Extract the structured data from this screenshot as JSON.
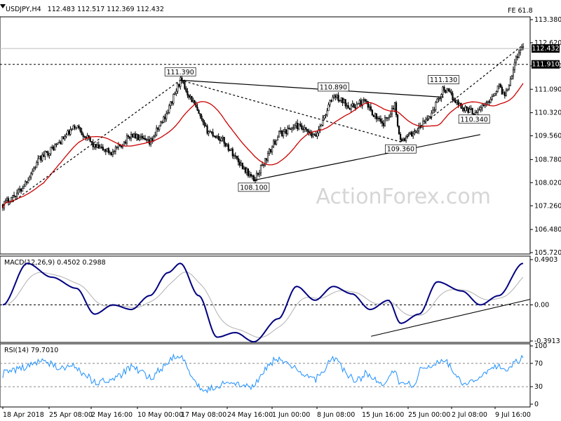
{
  "header": {
    "symbol": "USDJPY,H4",
    "ohlc": "112.483 112.517 112.369 112.432",
    "fe_label": "FE 61.8"
  },
  "watermark": "ActionForex.com",
  "chart_data": [
    {
      "type": "candlestick",
      "name": "price",
      "y_ticks": [
        113.38,
        112.62,
        111.86,
        111.09,
        110.32,
        109.56,
        108.78,
        108.02,
        107.26,
        106.48,
        105.72
      ],
      "ylim": [
        105.72,
        113.38
      ],
      "ma_fast_color": "#cc0000",
      "current_price": 112.432,
      "level_line": 111.91,
      "annotations": [
        {
          "label": "111.390",
          "value": 111.39,
          "x": "17 May 2018"
        },
        {
          "label": "110.890",
          "value": 110.89,
          "x": "11 Jun 2018"
        },
        {
          "label": "111.130",
          "value": 111.13,
          "x": "29 Jun 2018"
        },
        {
          "label": "110.340",
          "value": 110.34,
          "x": "4 Jul 2018"
        },
        {
          "label": "109.360",
          "value": 109.36,
          "x": "22 Jun 2018"
        },
        {
          "label": "108.100",
          "value": 108.1,
          "x": "29 May 2018"
        }
      ],
      "path_points": [
        [
          "18 Apr 2018 00:00",
          107.3
        ],
        [
          "21 Apr 2018 00:00",
          107.8
        ],
        [
          "24 Apr 2018 00:00",
          108.8
        ],
        [
          "27 Apr 2018 00:00",
          109.3
        ],
        [
          "30 Apr 2018 00:00",
          109.9
        ],
        [
          "3 May 2018 00:00",
          109.2
        ],
        [
          "6 May 2018 00:00",
          109.0
        ],
        [
          "9 May 2018 00:00",
          109.6
        ],
        [
          "12 May 2018 00:00",
          109.3
        ],
        [
          "15 May 2018 00:00",
          110.4
        ],
        [
          "17 May 2018 00:00",
          111.39
        ],
        [
          "19 May 2018 00:00",
          110.7
        ],
        [
          "21 May 2018 00:00",
          109.8
        ],
        [
          "24 May 2018 00:00",
          109.4
        ],
        [
          "27 May 2018 00:00",
          108.6
        ],
        [
          "29 May 2018 00:00",
          108.1
        ],
        [
          "31 May 2018 00:00",
          108.8
        ],
        [
          "2 Jun 2018 00:00",
          109.6
        ],
        [
          "5 Jun 2018 00:00",
          109.9
        ],
        [
          "8 Jun 2018 00:00",
          109.5
        ],
        [
          "11 Jun 2018 00:00",
          110.89
        ],
        [
          "14 Jun 2018 00:00",
          110.5
        ],
        [
          "16 Jun 2018 00:00",
          110.7
        ],
        [
          "19 Jun 2018 00:00",
          109.9
        ],
        [
          "21 Jun 2018 00:00",
          110.6
        ],
        [
          "22 Jun 2018 00:00",
          109.36
        ],
        [
          "25 Jun 2018 00:00",
          109.8
        ],
        [
          "27 Jun 2018 00:00",
          110.3
        ],
        [
          "29 Jun 2018 00:00",
          111.13
        ],
        [
          "2 Jul 2018 00:00",
          110.5
        ],
        [
          "4 Jul 2018 00:00",
          110.34
        ],
        [
          "6 Jul 2018 00:00",
          110.6
        ],
        [
          "8 Jul 2018 00:00",
          111.2
        ],
        [
          "9 Jul 2018 00:00",
          110.9
        ],
        [
          "10 Jul 2018 00:00",
          111.5
        ],
        [
          "11 Jul 2018 00:00",
          112.2
        ],
        [
          "12 Jul 2018 00:00",
          112.55
        ]
      ]
    },
    {
      "type": "line",
      "name": "MACD",
      "label": "MACD(12,26,9) 0.4502 0.2988",
      "values": {
        "macd": 0.4502,
        "signal": 0.2988
      },
      "y_ticks": [
        "0.4903",
        "0.00",
        "-0.3913"
      ],
      "ylim": [
        -0.3913,
        0.4903
      ],
      "series_colors": {
        "macd": "#000080",
        "signal": "#b0b0b0"
      },
      "path_points": [
        [
          "18 Apr 2018",
          0.0
        ],
        [
          "22 Apr 2018",
          0.45
        ],
        [
          "26 Apr 2018",
          0.3
        ],
        [
          "30 Apr 2018",
          0.18
        ],
        [
          "3 May 2018",
          -0.1
        ],
        [
          "6 May 2018",
          0.0
        ],
        [
          "9 May 2018",
          -0.05
        ],
        [
          "12 May 2018",
          0.1
        ],
        [
          "15 May 2018",
          0.35
        ],
        [
          "17 May 2018",
          0.45
        ],
        [
          "20 May 2018",
          0.1
        ],
        [
          "23 May 2018",
          -0.35
        ],
        [
          "26 May 2018",
          -0.3
        ],
        [
          "29 May 2018",
          -0.4
        ],
        [
          "2 Jun 2018",
          -0.15
        ],
        [
          "5 Jun 2018",
          0.2
        ],
        [
          "8 Jun 2018",
          0.05
        ],
        [
          "11 Jun 2018",
          0.2
        ],
        [
          "14 Jun 2018",
          0.12
        ],
        [
          "17 Jun 2018",
          -0.05
        ],
        [
          "20 Jun 2018",
          0.05
        ],
        [
          "22 Jun 2018",
          -0.2
        ],
        [
          "25 Jun 2018",
          -0.1
        ],
        [
          "28 Jun 2018",
          0.25
        ],
        [
          "2 Jul 2018",
          0.15
        ],
        [
          "5 Jul 2018",
          0.0
        ],
        [
          "8 Jul 2018",
          0.1
        ],
        [
          "12 Jul 2018",
          0.4502
        ]
      ]
    },
    {
      "type": "line",
      "name": "RSI",
      "label": "RSI(14) 79.7010",
      "value": 79.701,
      "y_ticks": [
        "100",
        "70",
        "30",
        "0"
      ],
      "ylim": [
        0,
        100
      ],
      "series_color": "#1e90ff"
    }
  ],
  "x_axis": {
    "labels": [
      "18 Apr 2018",
      "25 Apr 08:00",
      "2 May 16:00",
      "10 May 00:00",
      "17 May 08:00",
      "24 May 16:00",
      "1 Jun 00:00",
      "8 Jun 08:00",
      "15 Jun 16:00",
      "25 Jun 00:00",
      "2 Jul 08:00",
      "9 Jul 16:00"
    ]
  }
}
